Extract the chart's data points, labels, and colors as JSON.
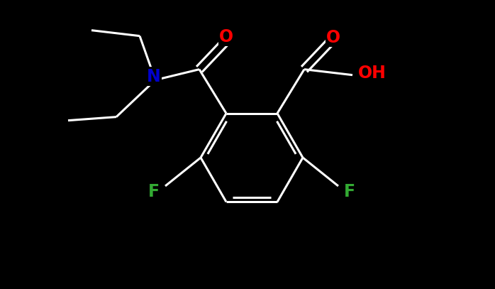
{
  "background_color": "#000000",
  "bond_color": "#ffffff",
  "bond_width": 2.2,
  "atom_colors": {
    "O": "#ff0000",
    "N": "#0000cc",
    "F": "#33aa33",
    "C": "#ffffff",
    "H": "#ffffff"
  },
  "font_size": 16,
  "figsize": [
    6.98,
    4.07
  ],
  "dpi": 100,
  "xlim": [
    0,
    6.98
  ],
  "ylim": [
    0,
    4.07
  ]
}
